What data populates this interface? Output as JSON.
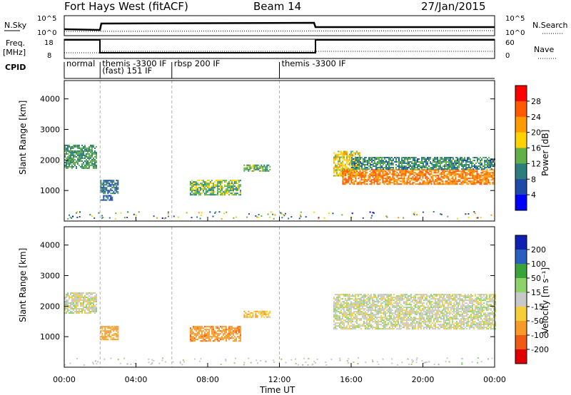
{
  "header": {
    "station": "Fort Hays West (fitACF)",
    "beam": "Beam 14",
    "date": "27/Jan/2015"
  },
  "top_panels": {
    "nsky_label": "N.Sky",
    "nsearch_label": "N.Search",
    "nsky_ticks": [
      "10^5",
      "10^0"
    ],
    "freq_label": "Freq.",
    "freq_unit": "[MHz]",
    "freq_ticks": [
      "18",
      "8"
    ],
    "nave_ticks": [
      "60",
      "0"
    ],
    "nave_label": "Nave",
    "cpid_label": "CPID"
  },
  "modes": [
    {
      "start_hour": 0.0,
      "lines": [
        "normal"
      ]
    },
    {
      "start_hour": 2.0,
      "lines": [
        "themis -3300 IF",
        "(fast) 151 IF"
      ]
    },
    {
      "start_hour": 6.0,
      "lines": [
        "rbsp 200 IF"
      ]
    },
    {
      "start_hour": 12.0,
      "lines": [
        "themis -3300 IF"
      ]
    }
  ],
  "power_colorbar": {
    "title": "Power [dB]",
    "ticks": [
      "28",
      "24",
      "20",
      "16",
      "12",
      "8",
      "4"
    ],
    "colors": [
      "#ff0000",
      "#ff5a00",
      "#ff9a00",
      "#ffd200",
      "#62b04a",
      "#2e7d7d",
      "#1f4aa8",
      "#0000ff"
    ]
  },
  "velocity_colorbar": {
    "title": "Velocity [m s⁻¹]",
    "ticks": [
      "200",
      "100",
      "50",
      "15",
      "-15",
      "-50",
      "-100",
      "-200"
    ],
    "colors": [
      "#1020b0",
      "#2a5fbf",
      "#3aa43a",
      "#8ed36a",
      "#c8c8c8",
      "#f5cf3a",
      "#f79a28",
      "#f05a14",
      "#e00000"
    ]
  },
  "chart_data": [
    {
      "type": "heatmap",
      "name": "power",
      "xlabel": "Time UT",
      "ylabel": "Slant Range [km]",
      "xlim": [
        0,
        24
      ],
      "ylim": [
        0,
        4600
      ],
      "xticks": [
        "00:00",
        "04:00",
        "08:00",
        "12:00",
        "16:00",
        "20:00",
        "00:00"
      ],
      "yticks": [
        1000,
        2000,
        3000,
        4000
      ],
      "regions": [
        {
          "t0": 0.0,
          "t1": 1.8,
          "r0": 1750,
          "r1": 2500,
          "value": 10
        },
        {
          "t0": 2.0,
          "t1": 3.0,
          "r0": 900,
          "r1": 1350,
          "value": 7
        },
        {
          "t0": 2.0,
          "t1": 2.7,
          "r0": 700,
          "r1": 850,
          "value": 5
        },
        {
          "t0": 7.0,
          "t1": 9.8,
          "r0": 850,
          "r1": 1350,
          "value": 12
        },
        {
          "t0": 10.0,
          "t1": 11.5,
          "r0": 1650,
          "r1": 1850,
          "value": 11
        },
        {
          "t0": 15.0,
          "t1": 16.5,
          "r0": 1500,
          "r1": 2300,
          "value": 16
        },
        {
          "t0": 15.5,
          "t1": 24.0,
          "r0": 1200,
          "r1": 1700,
          "value": 22
        },
        {
          "t0": 16.0,
          "t1": 24.0,
          "r0": 1700,
          "r1": 2100,
          "value": 9
        }
      ]
    },
    {
      "type": "heatmap",
      "name": "velocity",
      "xlabel": "Time UT",
      "ylabel": "Slant Range [km]",
      "xlim": [
        0,
        24
      ],
      "ylim": [
        0,
        4600
      ],
      "xticks": [
        "00:00",
        "04:00",
        "08:00",
        "12:00",
        "16:00",
        "20:00",
        "00:00"
      ],
      "yticks": [
        1000,
        2000,
        3000,
        4000
      ],
      "regions": [
        {
          "t0": 0.0,
          "t1": 1.8,
          "r0": 1750,
          "r1": 2450,
          "value": 0
        },
        {
          "t0": 2.0,
          "t1": 3.0,
          "r0": 900,
          "r1": 1350,
          "value": -70
        },
        {
          "t0": 7.0,
          "t1": 9.8,
          "r0": 850,
          "r1": 1350,
          "value": -80
        },
        {
          "t0": 10.0,
          "t1": 11.5,
          "r0": 1650,
          "r1": 1850,
          "value": -40
        },
        {
          "t0": 15.0,
          "t1": 24.0,
          "r0": 1250,
          "r1": 2400,
          "value": 0
        }
      ]
    }
  ]
}
